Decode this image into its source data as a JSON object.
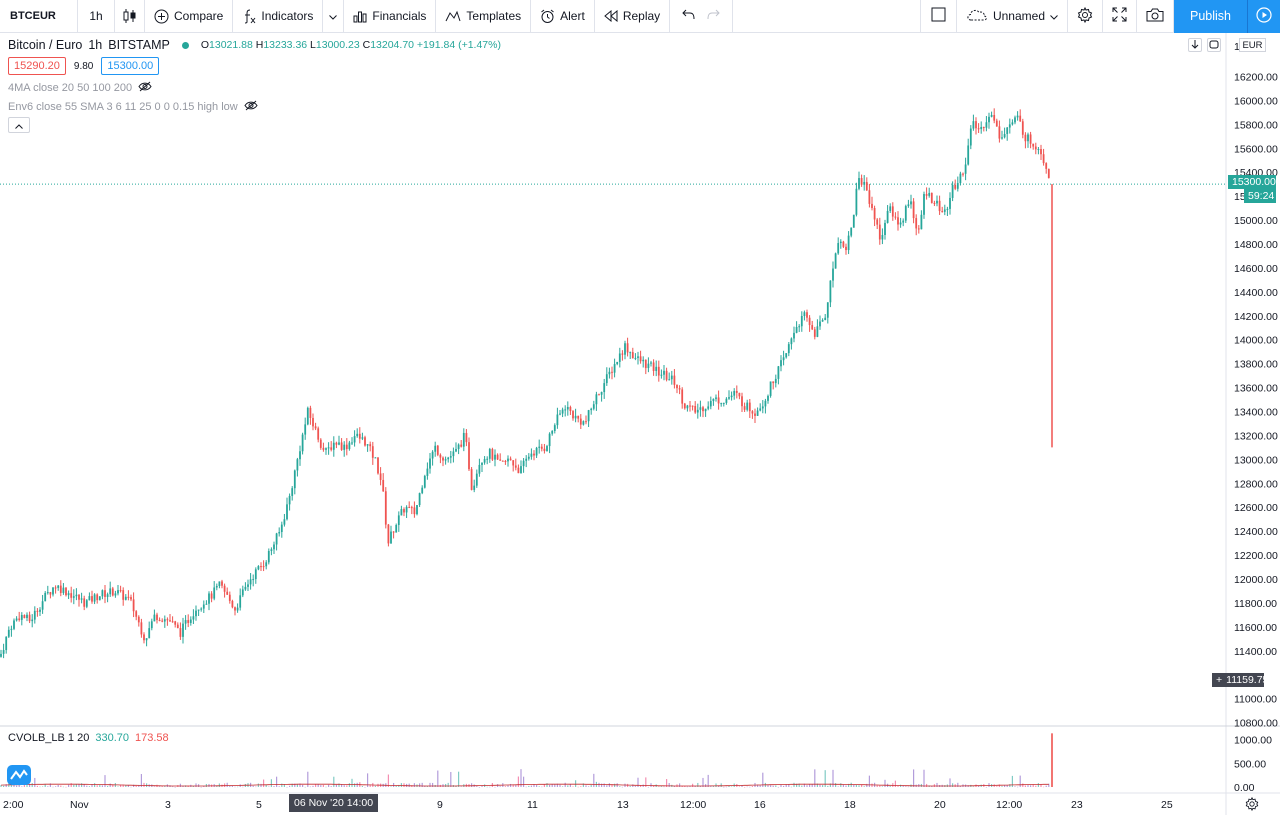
{
  "toolbar": {
    "symbol": "BTCEUR",
    "interval": "1h",
    "compare_label": "Compare",
    "indicators_label": "Indicators",
    "financials_label": "Financials",
    "templates_label": "Templates",
    "alert_label": "Alert",
    "replay_label": "Replay",
    "layout_name": "Unnamed",
    "publish_label": "Publish"
  },
  "legend": {
    "title": "Bitcoin / Euro",
    "interval": "1h",
    "exchange": "BITSTAMP",
    "open_label": "O",
    "open": "13021.88",
    "high_label": "H",
    "high": "13233.36",
    "low_label": "L",
    "low": "13000.23",
    "close_label": "C",
    "close": "13204.70",
    "change": "+191.84 (+1.47%)",
    "sell_price": "15290.20",
    "spread": "9.80",
    "buy_price": "15300.00",
    "indicator_1": "4MA close 20 50 100 200",
    "indicator_2": "Env6 close 55 SMA 3 6 11 25 0 0 0.15 high low"
  },
  "volume_legend": {
    "name": "CVOLB_LB 1 20",
    "value_1": "330.70",
    "value_2": "173.58"
  },
  "price_axis": {
    "currency": "EUR",
    "last_price": "15300.00",
    "countdown": "59:24",
    "crosshair_price": "11159.75",
    "partial_label": "15",
    "top_partial": "16"
  },
  "time_axis": {
    "crosshair_label": "06 Nov '20   14:00"
  },
  "colors": {
    "up": "#26a69a",
    "down": "#ef5350",
    "accent": "#2196f3"
  },
  "chart_data": {
    "type": "candlestick",
    "symbol": "BTCEUR",
    "interval": "1h",
    "y_ticks": [
      10800,
      11000,
      11200,
      11400,
      11600,
      11800,
      12000,
      12200,
      12400,
      12600,
      12800,
      13000,
      13200,
      13400,
      13600,
      13800,
      14000,
      14200,
      14400,
      14600,
      14800,
      15000,
      15200,
      15400,
      15600,
      15800,
      16000,
      16200
    ],
    "y_tick_labels": [
      "10800.00",
      "11000.00",
      "",
      "11400.00",
      "11600.00",
      "11800.00",
      "12000.00",
      "12200.00",
      "12400.00",
      "12600.00",
      "12800.00",
      "13000.00",
      "13200.00",
      "13400.00",
      "13600.00",
      "13800.00",
      "14000.00",
      "14200.00",
      "14400.00",
      "14600.00",
      "14800.00",
      "15000.00",
      "",
      "15400.00",
      "15600.00",
      "15800.00",
      "16000.00",
      "16200.00"
    ],
    "ylim": [
      10780,
      16480
    ],
    "x_ticks": [
      "2:00",
      "Nov",
      "3",
      "5",
      "9",
      "11",
      "13",
      "12:00",
      "16",
      "18",
      "20",
      "12:00",
      "23",
      "25"
    ],
    "volume_ticks": [
      "1000.00",
      "500.00",
      "0.00"
    ],
    "price_path": [
      [
        0,
        11350
      ],
      [
        10,
        11600
      ],
      [
        20,
        11700
      ],
      [
        30,
        11650
      ],
      [
        45,
        11850
      ],
      [
        55,
        11950
      ],
      [
        70,
        11880
      ],
      [
        85,
        11800
      ],
      [
        100,
        11870
      ],
      [
        115,
        11900
      ],
      [
        130,
        11820
      ],
      [
        145,
        11500
      ],
      [
        155,
        11700
      ],
      [
        170,
        11650
      ],
      [
        180,
        11550
      ],
      [
        195,
        11750
      ],
      [
        210,
        11850
      ],
      [
        220,
        11950
      ],
      [
        235,
        11750
      ],
      [
        250,
        12000
      ],
      [
        265,
        12150
      ],
      [
        280,
        12400
      ],
      [
        290,
        12700
      ],
      [
        300,
        13100
      ],
      [
        308,
        13400
      ],
      [
        315,
        13250
      ],
      [
        325,
        13050
      ],
      [
        335,
        13150
      ],
      [
        345,
        13100
      ],
      [
        355,
        13200
      ],
      [
        365,
        13150
      ],
      [
        375,
        13000
      ],
      [
        382,
        12800
      ],
      [
        388,
        12300
      ],
      [
        395,
        12450
      ],
      [
        405,
        12600
      ],
      [
        415,
        12550
      ],
      [
        425,
        12900
      ],
      [
        435,
        13100
      ],
      [
        445,
        13000
      ],
      [
        455,
        13050
      ],
      [
        465,
        13200
      ],
      [
        472,
        12750
      ],
      [
        480,
        13000
      ],
      [
        490,
        13050
      ],
      [
        500,
        12950
      ],
      [
        510,
        13000
      ],
      [
        520,
        12900
      ],
      [
        530,
        13050
      ],
      [
        545,
        13100
      ],
      [
        555,
        13300
      ],
      [
        565,
        13450
      ],
      [
        575,
        13350
      ],
      [
        585,
        13300
      ],
      [
        595,
        13500
      ],
      [
        605,
        13650
      ],
      [
        615,
        13800
      ],
      [
        625,
        13950
      ],
      [
        635,
        13850
      ],
      [
        645,
        13800
      ],
      [
        655,
        13750
      ],
      [
        665,
        13700
      ],
      [
        675,
        13650
      ],
      [
        685,
        13450
      ],
      [
        695,
        13400
      ],
      [
        705,
        13450
      ],
      [
        715,
        13500
      ],
      [
        725,
        13500
      ],
      [
        735,
        13550
      ],
      [
        745,
        13450
      ],
      [
        755,
        13400
      ],
      [
        765,
        13500
      ],
      [
        775,
        13700
      ],
      [
        785,
        13850
      ],
      [
        795,
        14100
      ],
      [
        805,
        14200
      ],
      [
        815,
        14050
      ],
      [
        825,
        14200
      ],
      [
        832,
        14550
      ],
      [
        838,
        14850
      ],
      [
        845,
        14750
      ],
      [
        852,
        14950
      ],
      [
        858,
        15350
      ],
      [
        865,
        15300
      ],
      [
        872,
        15100
      ],
      [
        880,
        14850
      ],
      [
        890,
        15100
      ],
      [
        900,
        14950
      ],
      [
        910,
        15200
      ],
      [
        918,
        14850
      ],
      [
        925,
        15250
      ],
      [
        935,
        15150
      ],
      [
        945,
        15050
      ],
      [
        952,
        15250
      ],
      [
        960,
        15350
      ],
      [
        966,
        15500
      ],
      [
        972,
        15800
      ],
      [
        980,
        15750
      ],
      [
        990,
        15900
      ],
      [
        1000,
        15700
      ],
      [
        1010,
        15800
      ],
      [
        1018,
        15850
      ],
      [
        1025,
        15700
      ],
      [
        1032,
        15650
      ],
      [
        1040,
        15600
      ],
      [
        1046,
        15450
      ],
      [
        1052,
        15300
      ]
    ],
    "last_candle": {
      "open": 15300,
      "high": 15300,
      "low": 13100,
      "close": 15300
    }
  }
}
